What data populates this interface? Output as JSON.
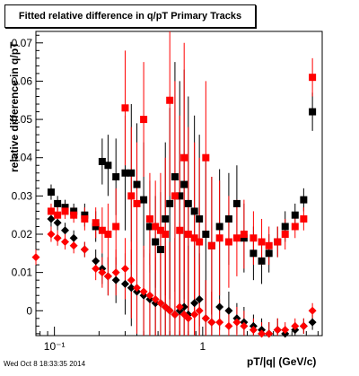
{
  "title": "Fitted relative difference in q/pT  Primary Tracks",
  "timestamp": "Wed Oct  8 18:33:35 2014",
  "chart_data": {
    "type": "scatter",
    "title": "Fitted relative difference in q/pT  Primary Tracks",
    "xlabel": "pT/|q| (GeV/c)",
    "ylabel": "relative difference in q/pT",
    "xscale": "log",
    "xlim": [
      0.075,
      6.4
    ],
    "ylim": [
      -0.0065,
      0.073
    ],
    "xticks": [
      {
        "value": 0.1,
        "label": "10⁻¹"
      },
      {
        "value": 1,
        "label": "1"
      }
    ],
    "yticks": [
      0,
      0.01,
      0.02,
      0.03,
      0.04,
      0.05,
      0.06,
      0.07
    ],
    "ytick_labels": [
      "0",
      "0.01",
      "0.02",
      "0.03",
      "0.04",
      "0.05",
      "0.06",
      "0.07"
    ],
    "grid": false,
    "legend": "none",
    "series": [
      {
        "marker": "square",
        "color": "#000000",
        "x": [
          0.095,
          0.105,
          0.118,
          0.135,
          0.16,
          0.19,
          0.21,
          0.23,
          0.26,
          0.3,
          0.33,
          0.36,
          0.4,
          0.44,
          0.48,
          0.52,
          0.56,
          0.6,
          0.65,
          0.7,
          0.75,
          0.8,
          0.88,
          0.95,
          1.05,
          1.15,
          1.3,
          1.5,
          1.7,
          1.9,
          2.2,
          2.5,
          2.8,
          3.2,
          3.6,
          4.2,
          4.8,
          5.5
        ],
        "y": [
          0.031,
          0.028,
          0.027,
          0.026,
          0.025,
          0.022,
          0.039,
          0.038,
          0.035,
          0.036,
          0.036,
          0.033,
          0.029,
          0.022,
          0.018,
          0.016,
          0.024,
          0.028,
          0.035,
          0.03,
          0.033,
          0.028,
          0.026,
          0.024,
          0.02,
          0.017,
          0.022,
          0.024,
          0.028,
          0.019,
          0.015,
          0.013,
          0.015,
          0.018,
          0.022,
          0.025,
          0.029,
          0.052
        ],
        "yerr": [
          0.002,
          0.002,
          0.002,
          0.002,
          0.003,
          0.004,
          0.006,
          0.008,
          0.01,
          0.015,
          0.018,
          0.016,
          0.015,
          0.012,
          0.012,
          0.015,
          0.02,
          0.025,
          0.03,
          0.03,
          0.03,
          0.028,
          0.025,
          0.022,
          0.02,
          0.018,
          0.015,
          0.012,
          0.01,
          0.009,
          0.007,
          0.006,
          0.005,
          0.004,
          0.004,
          0.003,
          0.003,
          0.005
        ]
      },
      {
        "marker": "diamond",
        "color": "#000000",
        "x": [
          0.095,
          0.105,
          0.118,
          0.135,
          0.16,
          0.19,
          0.21,
          0.23,
          0.26,
          0.3,
          0.33,
          0.36,
          0.4,
          0.44,
          0.48,
          0.52,
          0.56,
          0.6,
          0.65,
          0.7,
          0.75,
          0.8,
          0.88,
          0.95,
          1.05,
          1.15,
          1.3,
          1.5,
          1.7,
          1.9,
          2.2,
          2.5,
          2.8,
          3.2,
          3.6,
          4.2,
          4.8,
          5.5
        ],
        "y": [
          0.024,
          0.023,
          0.021,
          0.019,
          0.016,
          0.013,
          0.011,
          0.009,
          0.008,
          0.007,
          0.006,
          0.005,
          0.004,
          0.003,
          0.002,
          0.002,
          0.001,
          0.0,
          -0.001,
          0.0,
          0.001,
          -0.001,
          0.002,
          0.003,
          -0.002,
          -0.003,
          0.001,
          0.0,
          -0.002,
          -0.003,
          -0.004,
          -0.005,
          -0.006,
          -0.005,
          -0.006,
          -0.005,
          -0.004,
          -0.003
        ],
        "yerr": [
          0.002,
          0.002,
          0.002,
          0.002,
          0.002,
          0.003,
          0.004,
          0.005,
          0.006,
          0.008,
          0.01,
          0.012,
          0.012,
          0.012,
          0.012,
          0.014,
          0.016,
          0.018,
          0.02,
          0.022,
          0.02,
          0.018,
          0.015,
          0.012,
          0.01,
          0.008,
          0.006,
          0.005,
          0.004,
          0.004,
          0.003,
          0.003,
          0.003,
          0.003,
          0.002,
          0.002,
          0.002,
          0.002
        ]
      },
      {
        "marker": "square",
        "color": "#ff0000",
        "x": [
          0.095,
          0.105,
          0.118,
          0.135,
          0.16,
          0.19,
          0.21,
          0.23,
          0.26,
          0.3,
          0.33,
          0.36,
          0.4,
          0.44,
          0.48,
          0.52,
          0.56,
          0.6,
          0.65,
          0.7,
          0.75,
          0.8,
          0.88,
          0.95,
          1.05,
          1.15,
          1.3,
          1.5,
          1.7,
          1.9,
          2.2,
          2.5,
          2.8,
          3.2,
          3.6,
          4.2,
          4.8,
          5.5
        ],
        "y": [
          0.026,
          0.025,
          0.026,
          0.025,
          0.024,
          0.023,
          0.021,
          0.02,
          0.022,
          0.053,
          0.03,
          0.028,
          0.05,
          0.024,
          0.022,
          0.021,
          0.02,
          0.055,
          0.03,
          0.021,
          0.04,
          0.02,
          0.019,
          0.018,
          0.04,
          0.017,
          0.019,
          0.018,
          0.019,
          0.02,
          0.019,
          0.018,
          0.017,
          0.018,
          0.02,
          0.022,
          0.024,
          0.061
        ],
        "yerr": [
          0.002,
          0.002,
          0.002,
          0.002,
          0.003,
          0.004,
          0.006,
          0.008,
          0.01,
          0.015,
          0.018,
          0.016,
          0.015,
          0.012,
          0.012,
          0.015,
          0.02,
          0.025,
          0.03,
          0.03,
          0.03,
          0.028,
          0.025,
          0.022,
          0.02,
          0.018,
          0.015,
          0.012,
          0.01,
          0.009,
          0.007,
          0.006,
          0.005,
          0.004,
          0.004,
          0.003,
          0.003,
          0.005
        ]
      },
      {
        "marker": "diamond",
        "color": "#ff0000",
        "x": [
          0.075,
          0.095,
          0.105,
          0.118,
          0.135,
          0.16,
          0.19,
          0.21,
          0.23,
          0.26,
          0.3,
          0.33,
          0.36,
          0.4,
          0.44,
          0.48,
          0.52,
          0.56,
          0.6,
          0.65,
          0.7,
          0.75,
          0.8,
          0.88,
          0.95,
          1.05,
          1.15,
          1.3,
          1.5,
          1.7,
          1.9,
          2.2,
          2.5,
          2.8,
          3.2,
          3.6,
          4.2,
          4.8,
          5.5
        ],
        "y": [
          0.014,
          0.02,
          0.019,
          0.018,
          0.017,
          0.016,
          0.011,
          0.01,
          0.009,
          0.01,
          0.011,
          0.008,
          0.006,
          0.005,
          0.004,
          0.003,
          0.002,
          0.001,
          0.0,
          -0.001,
          0.001,
          -0.001,
          -0.002,
          -0.001,
          0.0,
          -0.002,
          -0.003,
          -0.003,
          -0.004,
          -0.003,
          -0.004,
          -0.005,
          -0.006,
          -0.006,
          -0.005,
          -0.005,
          -0.004,
          -0.004,
          0.0
        ],
        "yerr": [
          0.002,
          0.002,
          0.002,
          0.002,
          0.002,
          0.002,
          0.003,
          0.004,
          0.005,
          0.006,
          0.008,
          0.01,
          0.012,
          0.012,
          0.012,
          0.012,
          0.014,
          0.016,
          0.018,
          0.02,
          0.022,
          0.02,
          0.018,
          0.015,
          0.012,
          0.01,
          0.008,
          0.006,
          0.005,
          0.004,
          0.004,
          0.003,
          0.003,
          0.003,
          0.003,
          0.002,
          0.002,
          0.002,
          0.002
        ]
      }
    ]
  }
}
